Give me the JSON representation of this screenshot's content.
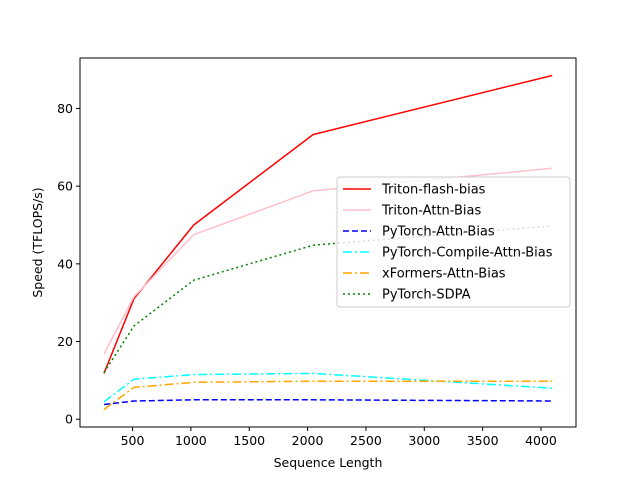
{
  "chart_data": {
    "type": "line",
    "title": "",
    "xlabel": "Sequence Length",
    "ylabel": "Speed (TFLOPS/s)",
    "xlim": [
      50,
      4300
    ],
    "ylim": [
      -2,
      93
    ],
    "xticks": [
      500,
      1000,
      1500,
      2000,
      2500,
      3000,
      3500,
      4000
    ],
    "yticks": [
      0,
      20,
      40,
      60,
      80
    ],
    "grid": false,
    "legend_position": "center-right",
    "x": [
      256,
      512,
      1024,
      2048,
      4096
    ],
    "series": [
      {
        "name": "Triton-flash-bias",
        "values": [
          11.8,
          31.0,
          50.0,
          73.3,
          88.5
        ],
        "color": "#ff0000",
        "dash": "solid"
      },
      {
        "name": "Triton-Attn-Bias",
        "values": [
          16.8,
          31.5,
          47.5,
          58.8,
          64.6
        ],
        "color": "#ffc0cb",
        "dash": "solid"
      },
      {
        "name": "PyTorch-Attn-Bias",
        "values": [
          3.8,
          4.7,
          5.0,
          5.0,
          4.7
        ],
        "color": "#0000ff",
        "dash": "dashed"
      },
      {
        "name": "PyTorch-Compile-Attn-Bias",
        "values": [
          4.5,
          10.3,
          11.5,
          11.8,
          8.0
        ],
        "color": "#00ffff",
        "dash": "dashdot"
      },
      {
        "name": "xFormers-Attn-Bias",
        "values": [
          2.5,
          8.2,
          9.5,
          9.8,
          9.8
        ],
        "color": "#ffa500",
        "dash": "dashdot"
      },
      {
        "name": "PyTorch-SDPA",
        "values": [
          12.0,
          24.0,
          35.8,
          44.8,
          49.8
        ],
        "color": "#008000",
        "dash": "dotted"
      }
    ]
  }
}
